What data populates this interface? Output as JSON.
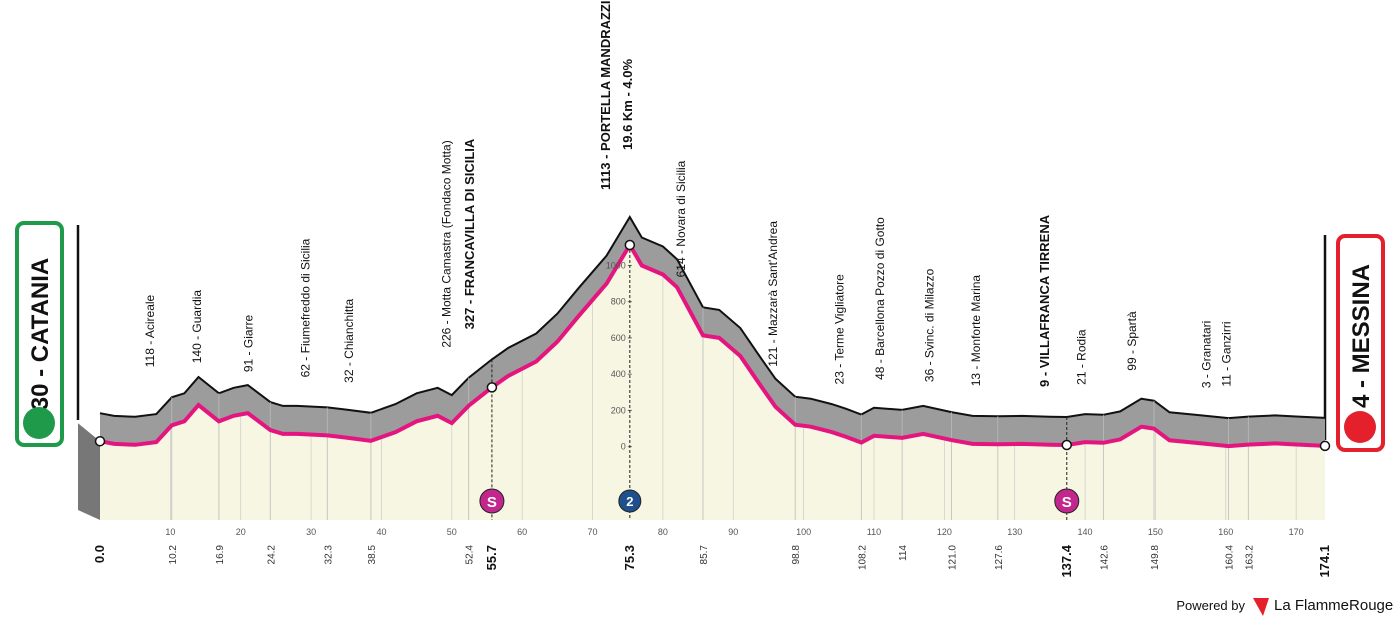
{
  "chart_data": {
    "type": "area",
    "start": {
      "name": "30 - CATANIA",
      "km": {
        "value": 0,
        "label": "0.0"
      }
    },
    "finish": {
      "name": "4 - MESSINA",
      "km": 174.1
    },
    "profile": {
      "km": [
        0,
        2,
        5,
        8,
        10.2,
        12,
        14,
        16.9,
        19,
        21,
        24.2,
        26,
        28,
        32.3,
        35,
        38.5,
        42,
        45,
        48,
        50,
        52.4,
        55.7,
        58,
        62,
        65,
        68,
        72,
        75.3,
        77,
        80,
        82,
        85.7,
        88,
        91,
        94,
        96,
        98.8,
        101,
        104,
        106,
        108.2,
        110,
        114,
        117,
        121,
        124,
        127.6,
        131,
        135,
        137.4,
        140,
        142.6,
        145,
        148,
        149.8,
        152,
        156,
        160.4,
        163.2,
        167,
        170,
        174.1
      ],
      "altitude": [
        30,
        15,
        10,
        25,
        118,
        140,
        230,
        140,
        170,
        185,
        91,
        70,
        70,
        62,
        50,
        32,
        80,
        140,
        170,
        130,
        226,
        327,
        390,
        470,
        580,
        720,
        900,
        1113,
        1000,
        950,
        880,
        614,
        600,
        500,
        330,
        220,
        121,
        110,
        80,
        55,
        23,
        60,
        48,
        70,
        36,
        15,
        13,
        15,
        10,
        9,
        25,
        21,
        40,
        110,
        99,
        35,
        20,
        3,
        11,
        18,
        12,
        4
      ],
      "color": "#e4157f"
    },
    "waypoints": [
      {
        "label": "118 - Acireale",
        "km": 10.2
      },
      {
        "label": "140 - Guardia",
        "km": 16.9
      },
      {
        "label": "91 - Giarre",
        "km": 24.2
      },
      {
        "label": "62 - Fiumefreddo di Sicilia",
        "km": 32.3
      },
      {
        "label": "32 - Chianchitta",
        "km": 38.5
      },
      {
        "label": "226 - Motta Camastra (Fondaco Motta)",
        "km": 52.4
      },
      {
        "label": "327 - FRANCAVILLA DI SICILIA",
        "km": 55.7,
        "major": true
      },
      {
        "label": "614 - Novara di Sicilia",
        "km": 85.7
      },
      {
        "label": "121 - Mazzarà Sant'Andrea",
        "km": 98.8
      },
      {
        "label": "23 - Terme Vigliatore",
        "km": 108.2
      },
      {
        "label": "48 - Barcellona Pozzo di Gotto",
        "km": 114.0
      },
      {
        "label": "36 - Svinc. di Milazzo",
        "km": {
          "value": 121,
          "label": "121.0"
        }
      },
      {
        "label": "13 - Monforte Marina",
        "km": 127.6
      },
      {
        "label": "9 - VILLAFRANCA TIRRENA",
        "km": 137.4,
        "major": true
      },
      {
        "label": "21 - Rodia",
        "km": 142.6
      },
      {
        "label": "99 - Spartà",
        "km": 149.8
      },
      {
        "label": "3 - Granatari",
        "km": 160.4
      },
      {
        "label": "11 - Ganzirri",
        "km": 163.2
      }
    ],
    "summit": {
      "title": "1113 - PORTELLA MANDRAZZI",
      "subtitle": "19.6 Km - 4.0%",
      "km": 75.3
    },
    "intermediate_sprints": [
      {
        "km": 55.7,
        "label": "S"
      },
      {
        "km": 137.4,
        "label": "S"
      }
    ],
    "climbs": [
      {
        "km": 75.3,
        "category": "2"
      }
    ],
    "xlim": [
      0,
      174.1
    ],
    "xticks": [
      10,
      20,
      30,
      40,
      50,
      60,
      70,
      80,
      90,
      100,
      110,
      120,
      130,
      140,
      150,
      160,
      170
    ],
    "ylim": [
      -405,
      1400
    ],
    "yticks": [
      0,
      200,
      400,
      600,
      800,
      1000
    ]
  },
  "footer": {
    "powered": "Powered by",
    "brand": "La FlammeRouge"
  }
}
